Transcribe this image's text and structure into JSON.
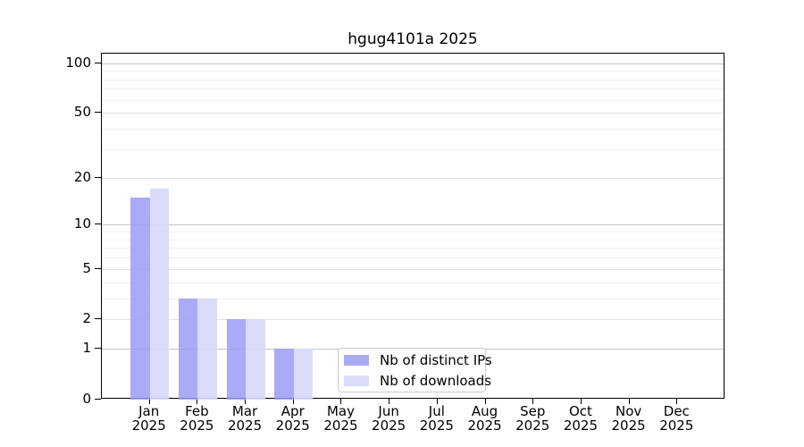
{
  "title": "hgug4101a 2025",
  "chart_data": {
    "type": "bar",
    "title": "hgug4101a 2025",
    "x_ticks": [
      {
        "month": "Jan",
        "year": "2025"
      },
      {
        "month": "Feb",
        "year": "2025"
      },
      {
        "month": "Mar",
        "year": "2025"
      },
      {
        "month": "Apr",
        "year": "2025"
      },
      {
        "month": "May",
        "year": "2025"
      },
      {
        "month": "Jun",
        "year": "2025"
      },
      {
        "month": "Jul",
        "year": "2025"
      },
      {
        "month": "Aug",
        "year": "2025"
      },
      {
        "month": "Sep",
        "year": "2025"
      },
      {
        "month": "Oct",
        "year": "2025"
      },
      {
        "month": "Nov",
        "year": "2025"
      },
      {
        "month": "Dec",
        "year": "2025"
      }
    ],
    "series": [
      {
        "name": "Nb of distinct IPs",
        "color": "rgba(155,155,247,0.85)",
        "values": [
          15,
          3,
          2,
          1,
          0,
          0,
          0,
          0,
          0,
          0,
          0,
          0
        ]
      },
      {
        "name": "Nb of downloads",
        "color": "rgba(216,216,250,0.92)",
        "values": [
          17,
          3,
          2,
          1,
          0,
          0,
          0,
          0,
          0,
          0,
          0,
          0
        ]
      }
    ],
    "y_axis": {
      "scale": "log10(1+x)",
      "tick_labels": [
        100,
        50,
        20,
        10,
        5,
        2,
        1,
        0
      ],
      "major_grid_values": [
        1,
        10,
        100
      ],
      "secondary_grid_values": [
        2,
        5,
        20,
        50
      ],
      "minor_grid_values": [
        3,
        4,
        6,
        7,
        8,
        9,
        30,
        40,
        60,
        70,
        80,
        90
      ],
      "ylim": [
        0,
        114
      ]
    },
    "grid": true,
    "legend_position": "bottom-center-inside"
  },
  "colors": {
    "major_grid": "#c4c4c4",
    "secondary_grid": "#e2e2e2",
    "minor_grid": "#eeeeee",
    "axis": "#000000",
    "legend_border": "#cccccc"
  }
}
